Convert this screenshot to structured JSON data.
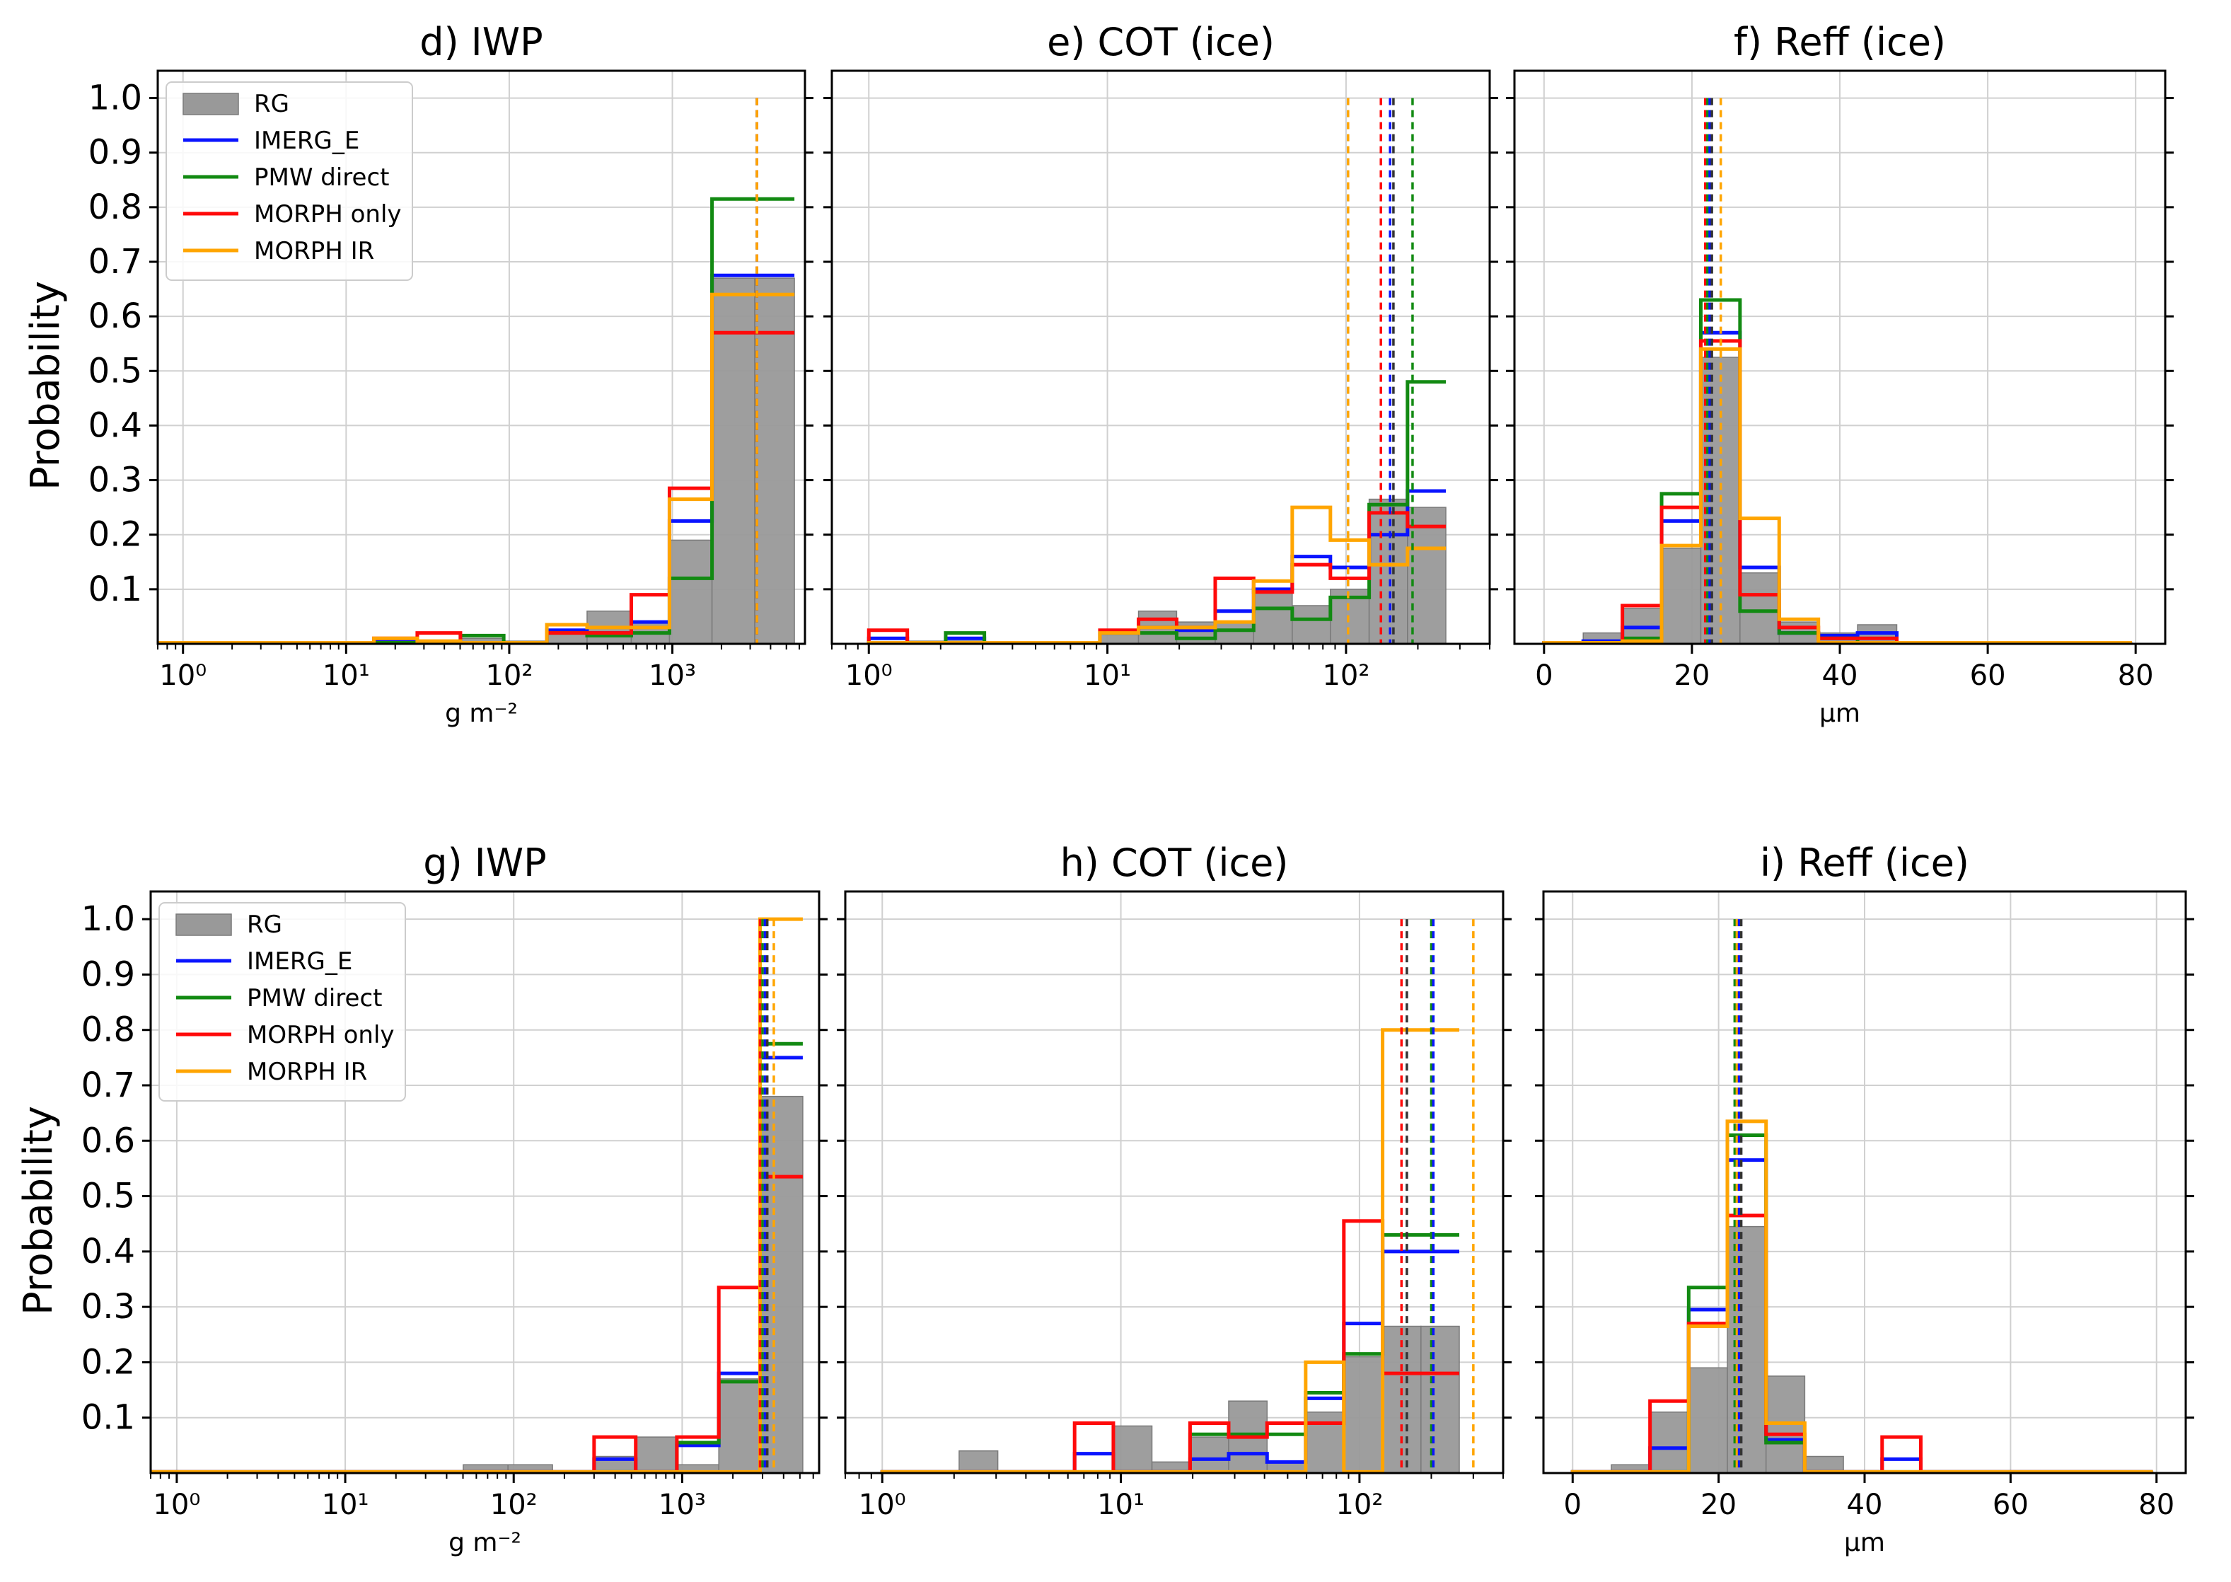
{
  "figure": {
    "legend_entries": [
      "RG",
      "IMERG_E",
      "PMW direct",
      "MORPH only",
      "MORPH IR"
    ],
    "colors": {
      "RG": "#999999",
      "IMERG_E": "#0a14ff",
      "PMW direct": "#128a12",
      "MORPH only": "#ff0a0a",
      "MORPH IR": "#ffa500"
    }
  },
  "chart_data": [
    {
      "id": "d",
      "type": "bar",
      "title": "d) IWP",
      "xscale": "log",
      "xlabel": "g m⁻²",
      "ylabel": "Probability",
      "xlim": [
        0.7,
        6500
      ],
      "ylim": [
        0,
        1.05
      ],
      "xticks": [
        1,
        10,
        100,
        1000
      ],
      "xtick_labels": [
        "10⁰",
        "10¹",
        "10²",
        "10³"
      ],
      "yticks": [
        0.1,
        0.2,
        0.3,
        0.4,
        0.5,
        0.6,
        0.7,
        0.8,
        0.9,
        1.0
      ],
      "ytick_labels": [
        "0.1",
        "0.2",
        "0.3",
        "0.4",
        "0.5",
        "0.6",
        "0.7",
        "0.8",
        "0.9",
        "1.0"
      ],
      "legend": "top-left",
      "bin_edges": [
        0.7,
        1.3,
        2.4,
        4.4,
        8.1,
        14.8,
        27.3,
        50.2,
        92.5,
        170,
        300,
        560,
        960,
        1750,
        3200,
        5600
      ],
      "series": [
        {
          "name": "RG",
          "style": "bar",
          "values": [
            0.002,
            0.002,
            0.002,
            0.002,
            0.002,
            0.002,
            0.005,
            0.01,
            0.005,
            0.02,
            0.06,
            0.04,
            0.19,
            0.67,
            0.67
          ]
        },
        {
          "name": "IMERG_E",
          "style": "step",
          "values": [
            0.002,
            0.002,
            0.002,
            0.002,
            0.002,
            0.005,
            0.002,
            0.002,
            0.002,
            0.025,
            0.02,
            0.04,
            0.225,
            0.675,
            0.675
          ]
        },
        {
          "name": "PMW direct",
          "style": "step",
          "values": [
            0.002,
            0.002,
            0.002,
            0.002,
            0.002,
            0.002,
            0.002,
            0.015,
            0.002,
            0.02,
            0.015,
            0.02,
            0.12,
            0.815,
            0.815
          ]
        },
        {
          "name": "MORPH only",
          "style": "step",
          "values": [
            0.002,
            0.002,
            0.002,
            0.002,
            0.002,
            0.01,
            0.02,
            0.002,
            0.002,
            0.02,
            0.02,
            0.09,
            0.285,
            0.57,
            0.57
          ]
        },
        {
          "name": "MORPH IR",
          "style": "step",
          "values": [
            0.002,
            0.002,
            0.002,
            0.002,
            0.002,
            0.01,
            0.005,
            0.002,
            0.002,
            0.035,
            0.03,
            0.03,
            0.265,
            0.64,
            0.64
          ]
        }
      ],
      "means": [
        {
          "name": "IMERG_E",
          "x": 3300
        },
        {
          "name": "PMW direct",
          "x": 3300
        },
        {
          "name": "MORPH only",
          "x": 3300
        },
        {
          "name": "MORPH IR",
          "x": 3300
        }
      ]
    },
    {
      "id": "e",
      "type": "bar",
      "title": "e) COT (ice)",
      "xscale": "log",
      "xlabel": "",
      "ylabel": "",
      "xlim": [
        0.7,
        400
      ],
      "ylim": [
        0,
        1.05
      ],
      "xticks": [
        1,
        10,
        100
      ],
      "xtick_labels": [
        "10⁰",
        "10¹",
        "10²"
      ],
      "yticks": [
        0.1,
        0.2,
        0.3,
        0.4,
        0.5,
        0.6,
        0.7,
        0.8,
        0.9,
        1.0
      ],
      "ytick_labels": [],
      "legend": "none",
      "bin_edges": [
        1,
        1.45,
        2.1,
        3.05,
        4.4,
        6.4,
        9.3,
        13.5,
        19.5,
        28.3,
        41,
        59.5,
        86,
        125,
        181,
        262
      ],
      "series": [
        {
          "name": "RG",
          "style": "bar",
          "values": [
            0.002,
            0.005,
            0.01,
            0.002,
            0.002,
            0.002,
            0.02,
            0.06,
            0.04,
            0.04,
            0.1,
            0.07,
            0.1,
            0.265,
            0.25
          ]
        },
        {
          "name": "IMERG_E",
          "style": "step",
          "values": [
            0.01,
            0.002,
            0.01,
            0.002,
            0.002,
            0.002,
            0.02,
            0.03,
            0.025,
            0.06,
            0.1,
            0.16,
            0.14,
            0.2,
            0.28
          ]
        },
        {
          "name": "PMW direct",
          "style": "step",
          "values": [
            0.002,
            0.002,
            0.02,
            0.002,
            0.002,
            0.002,
            0.02,
            0.02,
            0.01,
            0.025,
            0.065,
            0.045,
            0.085,
            0.255,
            0.48
          ]
        },
        {
          "name": "MORPH only",
          "style": "step",
          "values": [
            0.025,
            0.002,
            0.002,
            0.002,
            0.002,
            0.002,
            0.025,
            0.045,
            0.03,
            0.12,
            0.095,
            0.145,
            0.12,
            0.24,
            0.215
          ]
        },
        {
          "name": "MORPH IR",
          "style": "step",
          "values": [
            0.002,
            0.002,
            0.002,
            0.002,
            0.002,
            0.002,
            0.02,
            0.03,
            0.03,
            0.04,
            0.115,
            0.25,
            0.19,
            0.145,
            0.175
          ]
        }
      ],
      "means": [
        {
          "name": "MORPH IR",
          "x": 102
        },
        {
          "name": "MORPH only",
          "x": 140
        },
        {
          "name": "IMERG_E",
          "x": 153
        },
        {
          "name": "RG",
          "x": 158
        },
        {
          "name": "PMW direct",
          "x": 190
        }
      ]
    },
    {
      "id": "f",
      "type": "bar",
      "title": "f) Reff (ice)",
      "xscale": "linear",
      "xlabel": "µm",
      "ylabel": "",
      "xlim": [
        -4,
        84
      ],
      "ylim": [
        0,
        1.05
      ],
      "xticks": [
        0,
        20,
        40,
        60,
        80
      ],
      "xtick_labels": [
        "0",
        "20",
        "40",
        "60",
        "80"
      ],
      "yticks": [
        0.1,
        0.2,
        0.3,
        0.4,
        0.5,
        0.6,
        0.7,
        0.8,
        0.9,
        1.0
      ],
      "ytick_labels": [],
      "legend": "none",
      "bin_edges": [
        0,
        5.3,
        10.6,
        15.9,
        21.2,
        26.5,
        31.8,
        37.1,
        42.4,
        47.7,
        53,
        58.3,
        63.6,
        68.9,
        74.2,
        79.5
      ],
      "series": [
        {
          "name": "RG",
          "style": "bar",
          "values": [
            0.002,
            0.02,
            0.065,
            0.175,
            0.525,
            0.13,
            0.04,
            0.02,
            0.035,
            0.002,
            0.002,
            0.002,
            0.002,
            0.002,
            0.002
          ]
        },
        {
          "name": "IMERG_E",
          "style": "step",
          "values": [
            0.002,
            0.005,
            0.03,
            0.225,
            0.57,
            0.14,
            0.02,
            0.015,
            0.02,
            0.002,
            0.002,
            0.002,
            0.002,
            0.002,
            0.002
          ]
        },
        {
          "name": "PMW direct",
          "style": "step",
          "values": [
            0.002,
            0.002,
            0.01,
            0.275,
            0.63,
            0.06,
            0.02,
            0.01,
            0.002,
            0.002,
            0.002,
            0.002,
            0.002,
            0.002,
            0.002
          ]
        },
        {
          "name": "MORPH only",
          "style": "step",
          "values": [
            0.002,
            0.002,
            0.07,
            0.25,
            0.555,
            0.09,
            0.03,
            0.01,
            0.01,
            0.002,
            0.002,
            0.002,
            0.002,
            0.002,
            0.002
          ]
        },
        {
          "name": "MORPH IR",
          "style": "step",
          "values": [
            0.002,
            0.002,
            0.005,
            0.18,
            0.54,
            0.23,
            0.045,
            0.002,
            0.002,
            0.002,
            0.002,
            0.002,
            0.002,
            0.002,
            0.002
          ]
        }
      ],
      "means": [
        {
          "name": "MORPH only",
          "x": 21.8
        },
        {
          "name": "PMW direct",
          "x": 22.1
        },
        {
          "name": "IMERG_E",
          "x": 22.4
        },
        {
          "name": "RG",
          "x": 22.7
        },
        {
          "name": "MORPH IR",
          "x": 23.9
        }
      ]
    },
    {
      "id": "g",
      "type": "bar",
      "title": "g) IWP",
      "xscale": "log",
      "xlabel": "g m⁻²",
      "ylabel": "Probability",
      "xlim": [
        0.7,
        6500
      ],
      "ylim": [
        0,
        1.05
      ],
      "xticks": [
        1,
        10,
        100,
        1000
      ],
      "xtick_labels": [
        "10⁰",
        "10¹",
        "10²",
        "10³"
      ],
      "yticks": [
        0.1,
        0.2,
        0.3,
        0.4,
        0.5,
        0.6,
        0.7,
        0.8,
        0.9,
        1.0
      ],
      "ytick_labels": [
        "0.1",
        "0.2",
        "0.3",
        "0.4",
        "0.5",
        "0.6",
        "0.7",
        "0.8",
        "0.9",
        "1.0"
      ],
      "legend": "top-left",
      "bin_edges": [
        0.7,
        1.3,
        2.4,
        4.4,
        8.1,
        14.8,
        27.3,
        50.2,
        92.5,
        170,
        300,
        530,
        930,
        1650,
        2900,
        5200
      ],
      "series": [
        {
          "name": "RG",
          "style": "bar",
          "values": [
            0.002,
            0.002,
            0.002,
            0.002,
            0.002,
            0.002,
            0.002,
            0.015,
            0.015,
            0.002,
            0.03,
            0.065,
            0.015,
            0.17,
            0.68
          ]
        },
        {
          "name": "IMERG_E",
          "style": "step",
          "values": [
            0.002,
            0.002,
            0.002,
            0.002,
            0.002,
            0.002,
            0.002,
            0.002,
            0.002,
            0.002,
            0.025,
            0.002,
            0.05,
            0.18,
            0.75
          ]
        },
        {
          "name": "PMW direct",
          "style": "step",
          "values": [
            0.002,
            0.002,
            0.002,
            0.002,
            0.002,
            0.002,
            0.002,
            0.002,
            0.002,
            0.002,
            0.002,
            0.002,
            0.055,
            0.165,
            0.775
          ]
        },
        {
          "name": "MORPH only",
          "style": "step",
          "values": [
            0.002,
            0.002,
            0.002,
            0.002,
            0.002,
            0.002,
            0.002,
            0.002,
            0.002,
            0.002,
            0.065,
            0.002,
            0.065,
            0.335,
            0.535
          ]
        },
        {
          "name": "MORPH IR",
          "style": "step",
          "values": [
            0.002,
            0.002,
            0.002,
            0.002,
            0.002,
            0.002,
            0.002,
            0.002,
            0.002,
            0.002,
            0.002,
            0.002,
            0.002,
            0.002,
            1.0
          ]
        }
      ],
      "means": [
        {
          "name": "MORPH only",
          "x": 2900
        },
        {
          "name": "PMW direct",
          "x": 3000
        },
        {
          "name": "IMERG_E",
          "x": 3100
        },
        {
          "name": "RG",
          "x": 3200
        },
        {
          "name": "MORPH IR",
          "x": 3500
        }
      ]
    },
    {
      "id": "h",
      "type": "bar",
      "title": "h) COT (ice)",
      "xscale": "log",
      "xlabel": "",
      "ylabel": "",
      "xlim": [
        0.7,
        400
      ],
      "ylim": [
        0,
        1.05
      ],
      "xticks": [
        1,
        10,
        100
      ],
      "xtick_labels": [
        "10⁰",
        "10¹",
        "10²"
      ],
      "yticks": [
        0.1,
        0.2,
        0.3,
        0.4,
        0.5,
        0.6,
        0.7,
        0.8,
        0.9,
        1.0
      ],
      "ytick_labels": [],
      "legend": "none",
      "bin_edges": [
        1,
        1.45,
        2.1,
        3.05,
        4.4,
        6.4,
        9.3,
        13.5,
        19.5,
        28.3,
        41,
        59.5,
        86,
        125,
        181,
        262
      ],
      "series": [
        {
          "name": "RG",
          "style": "bar",
          "values": [
            0.002,
            0.002,
            0.04,
            0.002,
            0.002,
            0.002,
            0.085,
            0.02,
            0.065,
            0.13,
            0.02,
            0.11,
            0.21,
            0.265,
            0.265
          ]
        },
        {
          "name": "IMERG_E",
          "style": "step",
          "values": [
            0.002,
            0.002,
            0.002,
            0.002,
            0.002,
            0.035,
            0.002,
            0.002,
            0.025,
            0.035,
            0.02,
            0.135,
            0.27,
            0.4,
            0.4
          ]
        },
        {
          "name": "PMW direct",
          "style": "step",
          "values": [
            0.002,
            0.002,
            0.002,
            0.002,
            0.002,
            0.002,
            0.002,
            0.002,
            0.07,
            0.07,
            0.07,
            0.145,
            0.215,
            0.43,
            0.43
          ]
        },
        {
          "name": "MORPH only",
          "style": "step",
          "values": [
            0.002,
            0.002,
            0.002,
            0.002,
            0.002,
            0.09,
            0.002,
            0.002,
            0.09,
            0.065,
            0.09,
            0.09,
            0.455,
            0.18,
            0.18
          ]
        },
        {
          "name": "MORPH IR",
          "style": "step",
          "values": [
            0.002,
            0.002,
            0.002,
            0.002,
            0.002,
            0.002,
            0.002,
            0.002,
            0.002,
            0.002,
            0.002,
            0.2,
            0.002,
            0.8,
            0.8
          ]
        }
      ],
      "means": [
        {
          "name": "MORPH only",
          "x": 150
        },
        {
          "name": "RG",
          "x": 158
        },
        {
          "name": "PMW direct",
          "x": 200
        },
        {
          "name": "IMERG_E",
          "x": 204
        },
        {
          "name": "MORPH IR",
          "x": 300
        }
      ]
    },
    {
      "id": "i",
      "type": "bar",
      "title": "i) Reff (ice)",
      "xscale": "linear",
      "xlabel": "µm",
      "ylabel": "",
      "xlim": [
        -4,
        84
      ],
      "ylim": [
        0,
        1.05
      ],
      "xticks": [
        0,
        20,
        40,
        60,
        80
      ],
      "xtick_labels": [
        "0",
        "20",
        "40",
        "60",
        "80"
      ],
      "yticks": [
        0.1,
        0.2,
        0.3,
        0.4,
        0.5,
        0.6,
        0.7,
        0.8,
        0.9,
        1.0
      ],
      "ytick_labels": [],
      "legend": "none",
      "bin_edges": [
        0,
        5.3,
        10.6,
        15.9,
        21.2,
        26.5,
        31.8,
        37.1,
        42.4,
        47.7,
        53,
        58.3,
        63.6,
        68.9,
        74.2,
        79.5
      ],
      "series": [
        {
          "name": "RG",
          "style": "bar",
          "values": [
            0.002,
            0.015,
            0.11,
            0.19,
            0.445,
            0.175,
            0.03,
            0.002,
            0.002,
            0.002,
            0.002,
            0.002,
            0.002,
            0.002,
            0.002
          ]
        },
        {
          "name": "IMERG_E",
          "style": "step",
          "values": [
            0.002,
            0.002,
            0.045,
            0.295,
            0.565,
            0.06,
            0.002,
            0.002,
            0.025,
            0.002,
            0.002,
            0.002,
            0.002,
            0.002,
            0.002
          ]
        },
        {
          "name": "PMW direct",
          "style": "step",
          "values": [
            0.002,
            0.002,
            0.002,
            0.335,
            0.61,
            0.055,
            0.002,
            0.002,
            0.002,
            0.002,
            0.002,
            0.002,
            0.002,
            0.002,
            0.002
          ]
        },
        {
          "name": "MORPH only",
          "style": "step",
          "values": [
            0.002,
            0.002,
            0.13,
            0.27,
            0.465,
            0.07,
            0.002,
            0.002,
            0.065,
            0.002,
            0.002,
            0.002,
            0.002,
            0.002,
            0.002
          ]
        },
        {
          "name": "MORPH IR",
          "style": "step",
          "values": [
            0.002,
            0.002,
            0.002,
            0.265,
            0.635,
            0.09,
            0.002,
            0.002,
            0.002,
            0.002,
            0.002,
            0.002,
            0.002,
            0.002,
            0.002
          ]
        }
      ],
      "means": [
        {
          "name": "PMW direct",
          "x": 22.2
        },
        {
          "name": "MORPH IR",
          "x": 22.5
        },
        {
          "name": "IMERG_E",
          "x": 22.8
        },
        {
          "name": "RG",
          "x": 23.1
        }
      ]
    }
  ]
}
